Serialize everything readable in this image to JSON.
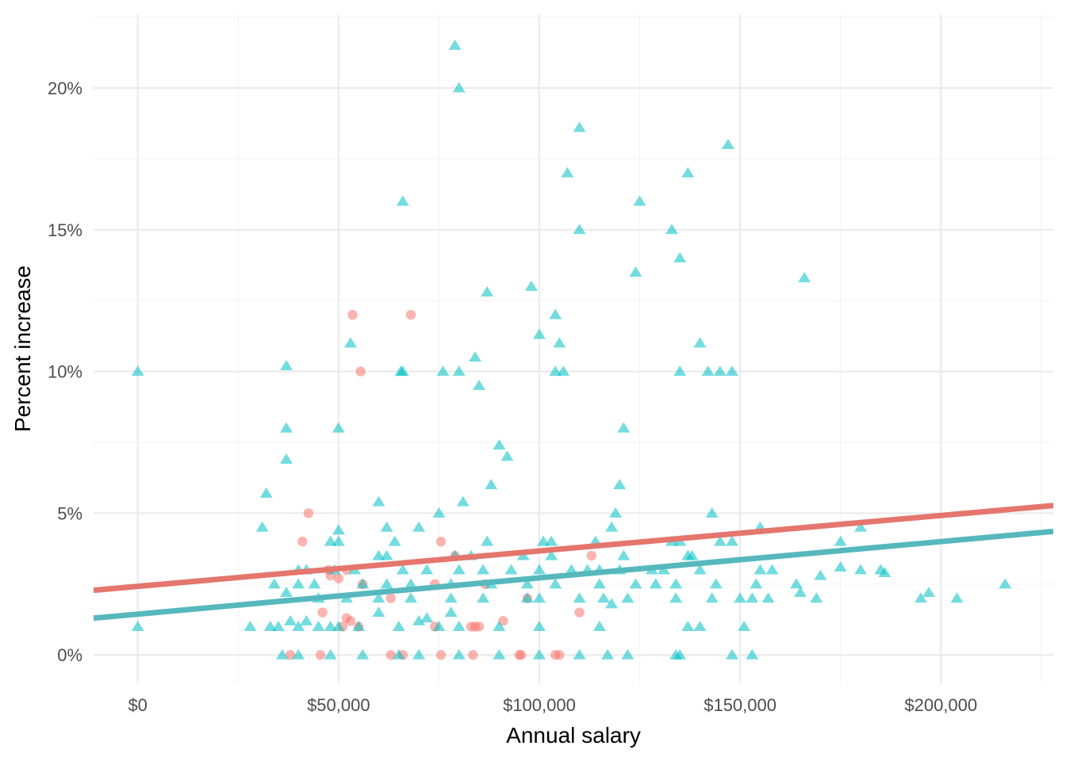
{
  "chart_data": {
    "type": "scatter",
    "title": "",
    "xlabel": "Annual salary",
    "ylabel": "Percent increase",
    "xlim": [
      -11000,
      228000
    ],
    "ylim": [
      -1.0,
      22.6
    ],
    "x_ticks": [
      0,
      50000,
      100000,
      150000,
      200000
    ],
    "x_tick_labels": [
      "$0",
      "$50,000",
      "$100,000",
      "$150,000",
      "$200,000"
    ],
    "y_ticks": [
      0,
      5,
      10,
      15,
      20
    ],
    "y_tick_labels": [
      "0%",
      "5%",
      "10%",
      "15%",
      "20%"
    ],
    "grid": true,
    "legend": "none",
    "colors": {
      "series_a": "#F8766D",
      "series_b": "#00BFC4",
      "line_a": "#E4766D",
      "line_b": "#56B8BD"
    },
    "series": [
      {
        "marker": "circle",
        "color": "#F8766D",
        "points": [
          [
            53500,
            12.0
          ],
          [
            68000,
            12.0
          ],
          [
            55500,
            10.0
          ],
          [
            42500,
            5.0
          ],
          [
            41000,
            4.0
          ],
          [
            75500,
            4.0
          ],
          [
            79000,
            3.5
          ],
          [
            113000,
            3.5
          ],
          [
            52000,
            3.0
          ],
          [
            47500,
            3.0
          ],
          [
            48000,
            2.8
          ],
          [
            50000,
            2.7
          ],
          [
            56000,
            2.5
          ],
          [
            86500,
            2.5
          ],
          [
            74000,
            2.5
          ],
          [
            63000,
            2.0
          ],
          [
            97000,
            2.0
          ],
          [
            46000,
            1.5
          ],
          [
            110000,
            1.5
          ],
          [
            52000,
            1.3
          ],
          [
            53000,
            1.2
          ],
          [
            91000,
            1.2
          ],
          [
            51000,
            1.0
          ],
          [
            55000,
            1.0
          ],
          [
            84000,
            1.0
          ],
          [
            85000,
            1.0
          ],
          [
            83000,
            1.0
          ],
          [
            74000,
            1.0
          ],
          [
            38000,
            0.0
          ],
          [
            45500,
            0.0
          ],
          [
            63000,
            0.0
          ],
          [
            66000,
            0.0
          ],
          [
            75500,
            0.0
          ],
          [
            83500,
            0.0
          ],
          [
            95000,
            0.0
          ],
          [
            95500,
            0.0
          ],
          [
            104000,
            0.0
          ],
          [
            105000,
            0.0
          ]
        ]
      },
      {
        "marker": "triangle",
        "color": "#00BFC4",
        "points": [
          [
            79000,
            21.5
          ],
          [
            80000,
            20.0
          ],
          [
            110000,
            18.6
          ],
          [
            147000,
            18.0
          ],
          [
            107000,
            17.0
          ],
          [
            137000,
            17.0
          ],
          [
            66000,
            16.0
          ],
          [
            125000,
            16.0
          ],
          [
            110000,
            15.0
          ],
          [
            133000,
            15.0
          ],
          [
            135000,
            14.0
          ],
          [
            124000,
            13.5
          ],
          [
            166000,
            13.3
          ],
          [
            98000,
            13.0
          ],
          [
            87000,
            12.8
          ],
          [
            104000,
            12.0
          ],
          [
            53000,
            11.0
          ],
          [
            105000,
            11.0
          ],
          [
            100000,
            11.3
          ],
          [
            140000,
            11.0
          ],
          [
            37000,
            10.2
          ],
          [
            0,
            10.0
          ],
          [
            65500,
            10.0
          ],
          [
            66000,
            10.0
          ],
          [
            76000,
            10.0
          ],
          [
            80000,
            10.0
          ],
          [
            84000,
            10.5
          ],
          [
            104000,
            10.0
          ],
          [
            106000,
            10.0
          ],
          [
            135000,
            10.0
          ],
          [
            142000,
            10.0
          ],
          [
            145000,
            10.0
          ],
          [
            148000,
            10.0
          ],
          [
            85000,
            9.5
          ],
          [
            37000,
            8.0
          ],
          [
            50000,
            8.0
          ],
          [
            121000,
            8.0
          ],
          [
            90000,
            7.4
          ],
          [
            92000,
            7.0
          ],
          [
            37000,
            6.9
          ],
          [
            88000,
            6.0
          ],
          [
            120000,
            6.0
          ],
          [
            32000,
            5.7
          ],
          [
            60000,
            5.4
          ],
          [
            81000,
            5.4
          ],
          [
            75000,
            5.0
          ],
          [
            119000,
            5.0
          ],
          [
            143000,
            5.0
          ],
          [
            31000,
            4.5
          ],
          [
            50000,
            4.4
          ],
          [
            62000,
            4.5
          ],
          [
            70000,
            4.5
          ],
          [
            118000,
            4.5
          ],
          [
            155000,
            4.5
          ],
          [
            180000,
            4.5
          ],
          [
            48000,
            4.0
          ],
          [
            50000,
            4.0
          ],
          [
            64000,
            4.0
          ],
          [
            87000,
            4.0
          ],
          [
            101000,
            4.0
          ],
          [
            103000,
            4.0
          ],
          [
            114000,
            4.0
          ],
          [
            133000,
            4.0
          ],
          [
            135000,
            4.0
          ],
          [
            145000,
            4.0
          ],
          [
            148000,
            4.0
          ],
          [
            175000,
            4.0
          ],
          [
            60000,
            3.5
          ],
          [
            62000,
            3.5
          ],
          [
            79000,
            3.5
          ],
          [
            83000,
            3.5
          ],
          [
            96000,
            3.5
          ],
          [
            103000,
            3.5
          ],
          [
            121000,
            3.5
          ],
          [
            137000,
            3.5
          ],
          [
            138000,
            3.5
          ],
          [
            40000,
            3.0
          ],
          [
            42000,
            3.0
          ],
          [
            49000,
            3.0
          ],
          [
            54000,
            3.0
          ],
          [
            66000,
            3.0
          ],
          [
            72000,
            3.0
          ],
          [
            80000,
            3.0
          ],
          [
            86000,
            3.0
          ],
          [
            93000,
            3.0
          ],
          [
            100000,
            3.0
          ],
          [
            108000,
            3.0
          ],
          [
            112000,
            3.0
          ],
          [
            115000,
            3.0
          ],
          [
            120000,
            3.0
          ],
          [
            128000,
            3.0
          ],
          [
            131000,
            3.0
          ],
          [
            140000,
            3.0
          ],
          [
            155000,
            3.0
          ],
          [
            158000,
            3.0
          ],
          [
            175000,
            3.1
          ],
          [
            180000,
            3.0
          ],
          [
            185000,
            3.0
          ],
          [
            186000,
            2.9
          ],
          [
            170000,
            2.8
          ],
          [
            34000,
            2.5
          ],
          [
            40000,
            2.5
          ],
          [
            44000,
            2.5
          ],
          [
            56000,
            2.5
          ],
          [
            62000,
            2.5
          ],
          [
            68000,
            2.5
          ],
          [
            78000,
            2.5
          ],
          [
            88000,
            2.5
          ],
          [
            97000,
            2.5
          ],
          [
            104000,
            2.5
          ],
          [
            115000,
            2.5
          ],
          [
            124000,
            2.5
          ],
          [
            129000,
            2.5
          ],
          [
            134000,
            2.5
          ],
          [
            144000,
            2.5
          ],
          [
            154000,
            2.5
          ],
          [
            164000,
            2.5
          ],
          [
            216000,
            2.5
          ],
          [
            37000,
            2.2
          ],
          [
            45000,
            2.0
          ],
          [
            52000,
            2.0
          ],
          [
            60000,
            2.0
          ],
          [
            68000,
            2.0
          ],
          [
            78000,
            2.0
          ],
          [
            86000,
            2.0
          ],
          [
            97000,
            2.0
          ],
          [
            100000,
            2.0
          ],
          [
            110000,
            2.0
          ],
          [
            116000,
            2.0
          ],
          [
            122000,
            2.0
          ],
          [
            134000,
            2.0
          ],
          [
            143000,
            2.0
          ],
          [
            150000,
            2.0
          ],
          [
            153000,
            2.0
          ],
          [
            157000,
            2.0
          ],
          [
            165000,
            2.2
          ],
          [
            169000,
            2.0
          ],
          [
            195000,
            2.0
          ],
          [
            197000,
            2.2
          ],
          [
            204000,
            2.0
          ],
          [
            118000,
            1.8
          ],
          [
            28000,
            1.0
          ],
          [
            33000,
            1.0
          ],
          [
            35000,
            1.0
          ],
          [
            38000,
            1.2
          ],
          [
            40000,
            1.0
          ],
          [
            42000,
            1.2
          ],
          [
            45000,
            1.0
          ],
          [
            48000,
            1.0
          ],
          [
            50000,
            1.0
          ],
          [
            55000,
            1.0
          ],
          [
            60000,
            1.5
          ],
          [
            65000,
            1.0
          ],
          [
            70000,
            1.2
          ],
          [
            72000,
            1.3
          ],
          [
            75000,
            1.0
          ],
          [
            78000,
            1.5
          ],
          [
            80000,
            1.0
          ],
          [
            90000,
            1.0
          ],
          [
            100000,
            1.0
          ],
          [
            115000,
            1.0
          ],
          [
            0,
            1.0
          ],
          [
            137000,
            1.0
          ],
          [
            140000,
            1.0
          ],
          [
            151000,
            1.0
          ],
          [
            36000,
            0.0
          ],
          [
            40000,
            0.0
          ],
          [
            48000,
            0.0
          ],
          [
            56000,
            0.0
          ],
          [
            65000,
            0.0
          ],
          [
            70000,
            0.0
          ],
          [
            80000,
            0.0
          ],
          [
            90000,
            0.0
          ],
          [
            100000,
            0.0
          ],
          [
            110000,
            0.0
          ],
          [
            117000,
            0.0
          ],
          [
            122000,
            0.0
          ],
          [
            134000,
            0.0
          ],
          [
            135000,
            0.0
          ],
          [
            148000,
            0.0
          ],
          [
            153000,
            0.0
          ]
        ]
      }
    ],
    "trend_lines": [
      {
        "color": "#E4766D",
        "intercept": 2.42,
        "slope_per_dollar": 1.25e-05
      },
      {
        "color": "#56B8BD",
        "intercept": 1.44,
        "slope_per_dollar": 1.28e-05
      }
    ]
  }
}
